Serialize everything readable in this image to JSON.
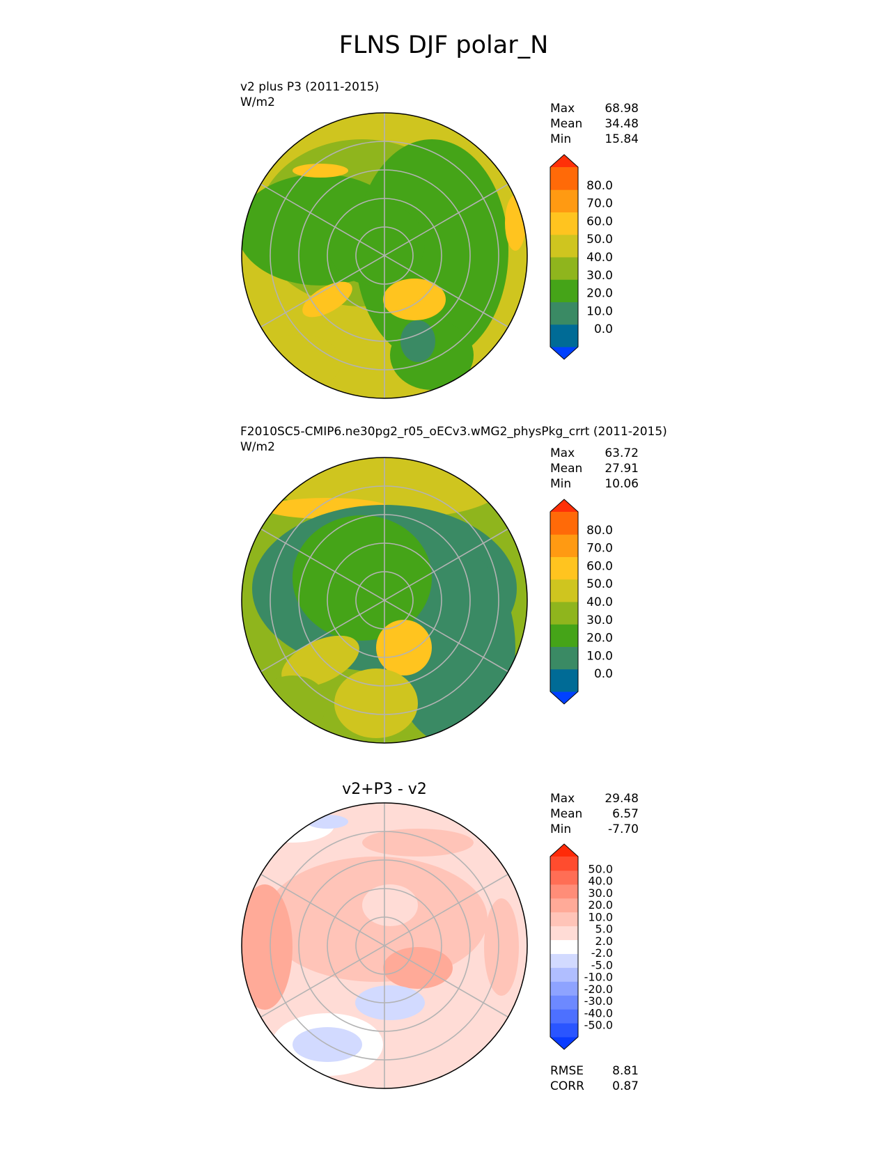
{
  "figure": {
    "title": "FLNS DJF polar_N"
  },
  "panels": [
    {
      "id": "test",
      "title_line1": "v2 plus P3 (2011-2015)",
      "title_line2": "W/m2",
      "stats": [
        {
          "label": "Max",
          "value": "68.98"
        },
        {
          "label": "Mean",
          "value": "34.48"
        },
        {
          "label": "Min",
          "value": "15.84"
        }
      ],
      "colorbar": {
        "labels": [
          "80.0",
          "70.0",
          "60.0",
          "50.0",
          "40.0",
          "30.0",
          "20.0",
          "10.0",
          "0.0"
        ],
        "colors": [
          "#0041ff",
          "#006b96",
          "#3a8a64",
          "#45a418",
          "#8fb51d",
          "#cfc51f",
          "#ffc41f",
          "#ff9a12",
          "#ff6a08",
          "#ff3008"
        ]
      }
    },
    {
      "id": "ref",
      "title_line1": "F2010SC5-CMIP6.ne30pg2_r05_oECv3.wMG2_physPkg_crrt (2011-2015)",
      "title_line2": "W/m2",
      "stats": [
        {
          "label": "Max",
          "value": "63.72"
        },
        {
          "label": "Mean",
          "value": "27.91"
        },
        {
          "label": "Min",
          "value": "10.06"
        }
      ],
      "colorbar": {
        "labels": [
          "80.0",
          "70.0",
          "60.0",
          "50.0",
          "40.0",
          "30.0",
          "20.0",
          "10.0",
          "0.0"
        ],
        "colors": [
          "#0041ff",
          "#006b96",
          "#3a8a64",
          "#45a418",
          "#8fb51d",
          "#cfc51f",
          "#ffc41f",
          "#ff9a12",
          "#ff6a08",
          "#ff3008"
        ]
      }
    },
    {
      "id": "diff",
      "title_center": "v2+P3 - v2",
      "stats": [
        {
          "label": "Max",
          "value": "29.48"
        },
        {
          "label": "Mean",
          "value": "6.57"
        },
        {
          "label": "Min",
          "value": "-7.70"
        }
      ],
      "colorbar": {
        "labels": [
          "50.0",
          "40.0",
          "30.0",
          "20.0",
          "10.0",
          "5.0",
          "2.0",
          "-2.0",
          "-5.0",
          "-10.0",
          "-20.0",
          "-30.0",
          "-40.0",
          "-50.0"
        ],
        "colors": [
          "#0a3cff",
          "#2a55ff",
          "#4d70ff",
          "#6d89ff",
          "#8ea3ff",
          "#b0beff",
          "#d2daff",
          "#ffffff",
          "#ffdcd6",
          "#ffc4b8",
          "#ffaa98",
          "#ff8d78",
          "#ff6e55",
          "#ff4c2e",
          "#ff2a08"
        ]
      },
      "bottom_stats": [
        {
          "label": "RMSE",
          "value": "8.81"
        },
        {
          "label": "CORR",
          "value": "0.87"
        }
      ]
    }
  ],
  "chart_data": [
    {
      "type": "heatmap",
      "projection": "north-polar-stereographic",
      "title": "v2 plus P3 (2011-2015)",
      "units": "W/m2",
      "levels": [
        0,
        10,
        20,
        30,
        40,
        50,
        60,
        70,
        80
      ],
      "max": 68.98,
      "mean": 34.48,
      "min": 15.84
    },
    {
      "type": "heatmap",
      "projection": "north-polar-stereographic",
      "title": "F2010SC5-CMIP6.ne30pg2_r05_oECv3.wMG2_physPkg_crrt (2011-2015)",
      "units": "W/m2",
      "levels": [
        0,
        10,
        20,
        30,
        40,
        50,
        60,
        70,
        80
      ],
      "max": 63.72,
      "mean": 27.91,
      "min": 10.06
    },
    {
      "type": "heatmap",
      "projection": "north-polar-stereographic",
      "title": "v2+P3 - v2",
      "levels": [
        -50,
        -40,
        -30,
        -20,
        -10,
        -5,
        -2,
        2,
        5,
        10,
        20,
        30,
        40,
        50
      ],
      "max": 29.48,
      "mean": 6.57,
      "min": -7.7,
      "rmse": 8.81,
      "corr": 0.87
    }
  ]
}
